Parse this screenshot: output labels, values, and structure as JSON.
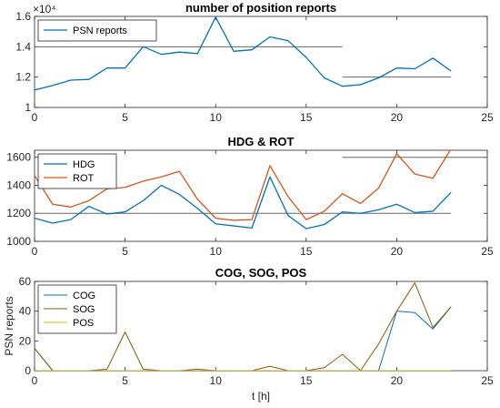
{
  "chart_data": [
    {
      "type": "line",
      "title": "number of position reports",
      "exponent_label": "×10⁴",
      "xlim": [
        0,
        25
      ],
      "ylim": [
        1,
        1.6
      ],
      "xticks": [
        0,
        5,
        10,
        15,
        20,
        25
      ],
      "yticks": [
        1,
        1.2,
        1.4,
        1.6
      ],
      "x": [
        0,
        1,
        2,
        3,
        4,
        5,
        6,
        7,
        8,
        9,
        10,
        11,
        12,
        13,
        14,
        15,
        16,
        17,
        18,
        19,
        20,
        21,
        22,
        23
      ],
      "series": [
        {
          "name": "PSN reports",
          "color": "#0072BD",
          "width": 1.3,
          "values": [
            1.115,
            1.145,
            1.18,
            1.185,
            1.26,
            1.26,
            1.4,
            1.35,
            1.365,
            1.355,
            1.595,
            1.37,
            1.38,
            1.465,
            1.44,
            1.33,
            1.195,
            1.14,
            1.15,
            1.195,
            1.26,
            1.255,
            1.325,
            1.24
          ]
        }
      ],
      "reference_lines": [
        {
          "x": [
            0,
            17
          ],
          "y": 1.4,
          "color": "#666666"
        },
        {
          "x": [
            17,
            23
          ],
          "y": 1.2,
          "color": "#666666"
        }
      ],
      "legend": "top-left"
    },
    {
      "type": "line",
      "title": "HDG & ROT",
      "xlim": [
        0,
        25
      ],
      "ylim": [
        1000,
        1650
      ],
      "xticks": [
        0,
        5,
        10,
        15,
        20,
        25
      ],
      "yticks": [
        1000,
        1200,
        1400,
        1600
      ],
      "x": [
        0,
        1,
        2,
        3,
        4,
        5,
        6,
        7,
        8,
        9,
        10,
        11,
        12,
        13,
        14,
        15,
        16,
        17,
        18,
        19,
        20,
        21,
        22,
        23
      ],
      "series": [
        {
          "name": "HDG",
          "color": "#0072BD",
          "width": 1.3,
          "values": [
            1165,
            1130,
            1155,
            1250,
            1195,
            1210,
            1290,
            1400,
            1335,
            1235,
            1125,
            1110,
            1095,
            1460,
            1185,
            1090,
            1120,
            1210,
            1200,
            1225,
            1265,
            1205,
            1215,
            1350
          ]
        },
        {
          "name": "ROT",
          "color": "#D95319",
          "width": 1.3,
          "values": [
            1470,
            1265,
            1245,
            1290,
            1375,
            1385,
            1430,
            1460,
            1500,
            1300,
            1165,
            1150,
            1155,
            1540,
            1320,
            1155,
            1215,
            1340,
            1270,
            1380,
            1625,
            1480,
            1450,
            1660
          ]
        }
      ],
      "reference_lines": [
        {
          "x": [
            0,
            23
          ],
          "y": 1200,
          "color": "#666666"
        },
        {
          "x": [
            17,
            25
          ],
          "y": 1600,
          "color": "#666666"
        }
      ],
      "legend": "top-left"
    },
    {
      "type": "line",
      "title": "COG, SOG, POS",
      "ylabel": "PSN reports",
      "xlabel": "t [h]",
      "xlim": [
        0,
        25
      ],
      "ylim": [
        0,
        60
      ],
      "xticks": [
        0,
        5,
        10,
        15,
        20,
        25
      ],
      "yticks": [
        0,
        20,
        40,
        60
      ],
      "x": [
        0,
        1,
        2,
        3,
        4,
        5,
        6,
        7,
        8,
        9,
        10,
        11,
        12,
        13,
        14,
        15,
        16,
        17,
        18,
        19,
        20,
        21,
        22,
        23
      ],
      "series": [
        {
          "name": "COG",
          "color": "#0072BD",
          "width": 1.0,
          "values": [
            15,
            0,
            0,
            0,
            0,
            0,
            0,
            0,
            0,
            0,
            0,
            0,
            0,
            0,
            0,
            0,
            0,
            0,
            0,
            0,
            40,
            39,
            28,
            43
          ]
        },
        {
          "name": "SOG",
          "color": "#8C5A00",
          "width": 1.0,
          "values": [
            15,
            0,
            0,
            0,
            1,
            26,
            1,
            0,
            0,
            1,
            0,
            0,
            0,
            3,
            0,
            0,
            2,
            11,
            0,
            18,
            40,
            59,
            29,
            43
          ]
        },
        {
          "name": "POS",
          "color": "#E8B000",
          "width": 1.0,
          "values": [
            0,
            0,
            0,
            0,
            0,
            0,
            0,
            0,
            0,
            0,
            0,
            0,
            0,
            0,
            0,
            0,
            0,
            0,
            0,
            0,
            0,
            0,
            0,
            0
          ]
        }
      ],
      "reference_lines": [
        {
          "x": [
            0,
            25
          ],
          "y": 0,
          "color": "#666666"
        }
      ],
      "legend": "top-left"
    }
  ]
}
